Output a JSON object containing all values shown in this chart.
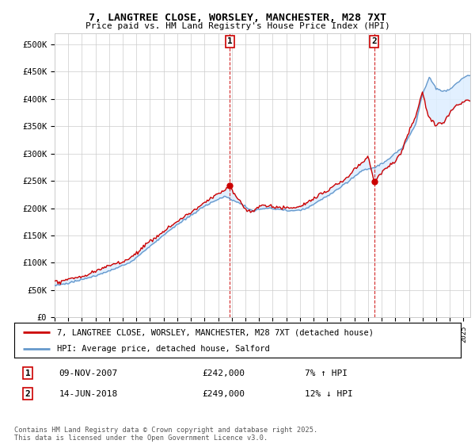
{
  "title": "7, LANGTREE CLOSE, WORSLEY, MANCHESTER, M28 7XT",
  "subtitle": "Price paid vs. HM Land Registry's House Price Index (HPI)",
  "ylabel_ticks": [
    "£0",
    "£50K",
    "£100K",
    "£150K",
    "£200K",
    "£250K",
    "£300K",
    "£350K",
    "£400K",
    "£450K",
    "£500K"
  ],
  "ytick_values": [
    0,
    50000,
    100000,
    150000,
    200000,
    250000,
    300000,
    350000,
    400000,
    450000,
    500000
  ],
  "ylim": [
    0,
    520000
  ],
  "xlim_start": 1995.0,
  "xlim_end": 2025.5,
  "marker1_x": 2007.86,
  "marker1_y": 242000,
  "marker2_x": 2018.45,
  "marker2_y": 249000,
  "sale1_date": "09-NOV-2007",
  "sale1_price": "£242,000",
  "sale1_hpi": "7% ↑ HPI",
  "sale2_date": "14-JUN-2018",
  "sale2_price": "£249,000",
  "sale2_hpi": "12% ↓ HPI",
  "legend_line1": "7, LANGTREE CLOSE, WORSLEY, MANCHESTER, M28 7XT (detached house)",
  "legend_line2": "HPI: Average price, detached house, Salford",
  "footnote": "Contains HM Land Registry data © Crown copyright and database right 2025.\nThis data is licensed under the Open Government Licence v3.0.",
  "line_color_red": "#cc0000",
  "line_color_blue": "#6699cc",
  "shade_color": "#ddeeff",
  "background_color": "#ffffff",
  "grid_color": "#cccccc",
  "vline_color": "#cc0000"
}
